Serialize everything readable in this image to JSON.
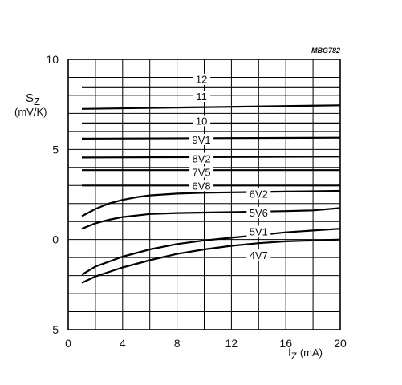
{
  "chart_data": {
    "type": "line",
    "code": "MBG782",
    "xlabel_main": "I",
    "xlabel_sub": "Z",
    "xlabel_unit": " (mA)",
    "ylabel_main": "S",
    "ylabel_sub": "Z",
    "ylabel_unit": "(mV/K)",
    "xlim": [
      0,
      20
    ],
    "ylim": [
      -5,
      10
    ],
    "x_ticks": [
      {
        "value": 0,
        "label": "0"
      },
      {
        "value": 4,
        "label": "4"
      },
      {
        "value": 8,
        "label": "8"
      },
      {
        "value": 12,
        "label": "12"
      },
      {
        "value": 16,
        "label": "16"
      },
      {
        "value": 20,
        "label": "20"
      }
    ],
    "y_ticks": [
      {
        "value": -5,
        "label": "−5"
      },
      {
        "value": 0,
        "label": "0"
      },
      {
        "value": 5,
        "label": "5"
      },
      {
        "value": 10,
        "label": "10"
      }
    ],
    "grid": true,
    "series": [
      {
        "name": "12",
        "x": [
          1,
          20
        ],
        "y": [
          8.45,
          8.45
        ],
        "label_at": [
          9.8,
          8.9
        ]
      },
      {
        "name": "11",
        "x": [
          1,
          20
        ],
        "y": [
          7.25,
          7.45
        ],
        "label_at": [
          9.8,
          7.95
        ]
      },
      {
        "name": "10",
        "x": [
          1,
          20
        ],
        "y": [
          6.45,
          6.45
        ],
        "label_at": [
          9.8,
          6.6
        ]
      },
      {
        "name": "9V1",
        "x": [
          1,
          20
        ],
        "y": [
          5.6,
          5.65
        ],
        "label_at": [
          9.8,
          5.55
        ]
      },
      {
        "name": "8V2",
        "x": [
          1,
          20
        ],
        "y": [
          4.55,
          4.6
        ],
        "label_at": [
          9.8,
          4.5
        ]
      },
      {
        "name": "7V5",
        "x": [
          1,
          20
        ],
        "y": [
          3.85,
          3.85
        ],
        "label_at": [
          9.8,
          3.75
        ]
      },
      {
        "name": "6V8",
        "x": [
          1,
          20
        ],
        "y": [
          3.0,
          3.0
        ],
        "label_at": [
          9.8,
          3.0
        ]
      },
      {
        "name": "6V2",
        "x": [
          1,
          2,
          3,
          4,
          5,
          6,
          8,
          10,
          12,
          14,
          16,
          18,
          20
        ],
        "y": [
          1.3,
          1.7,
          2.0,
          2.2,
          2.35,
          2.45,
          2.55,
          2.6,
          2.62,
          2.64,
          2.66,
          2.68,
          2.7
        ],
        "label_at": [
          14.0,
          2.55
        ]
      },
      {
        "name": "5V6",
        "x": [
          1,
          2,
          3,
          4,
          6,
          8,
          10,
          12,
          14,
          16,
          18,
          20
        ],
        "y": [
          0.6,
          0.9,
          1.1,
          1.25,
          1.42,
          1.47,
          1.5,
          1.52,
          1.55,
          1.58,
          1.62,
          1.75
        ],
        "label_at": [
          14.0,
          1.5
        ]
      },
      {
        "name": "5V1",
        "x": [
          1,
          2,
          4,
          6,
          8,
          10,
          12,
          14,
          16,
          18,
          20
        ],
        "y": [
          -1.95,
          -1.5,
          -0.95,
          -0.55,
          -0.25,
          -0.05,
          0.1,
          0.25,
          0.4,
          0.5,
          0.6
        ],
        "label_at": [
          14.0,
          0.45
        ]
      },
      {
        "name": "4V7",
        "x": [
          1,
          2,
          4,
          6,
          8,
          10,
          12,
          14,
          16,
          18,
          20
        ],
        "y": [
          -2.4,
          -2.05,
          -1.55,
          -1.15,
          -0.8,
          -0.55,
          -0.35,
          -0.2,
          -0.1,
          -0.05,
          0.0
        ],
        "label_at": [
          14.0,
          -0.85
        ]
      }
    ]
  }
}
